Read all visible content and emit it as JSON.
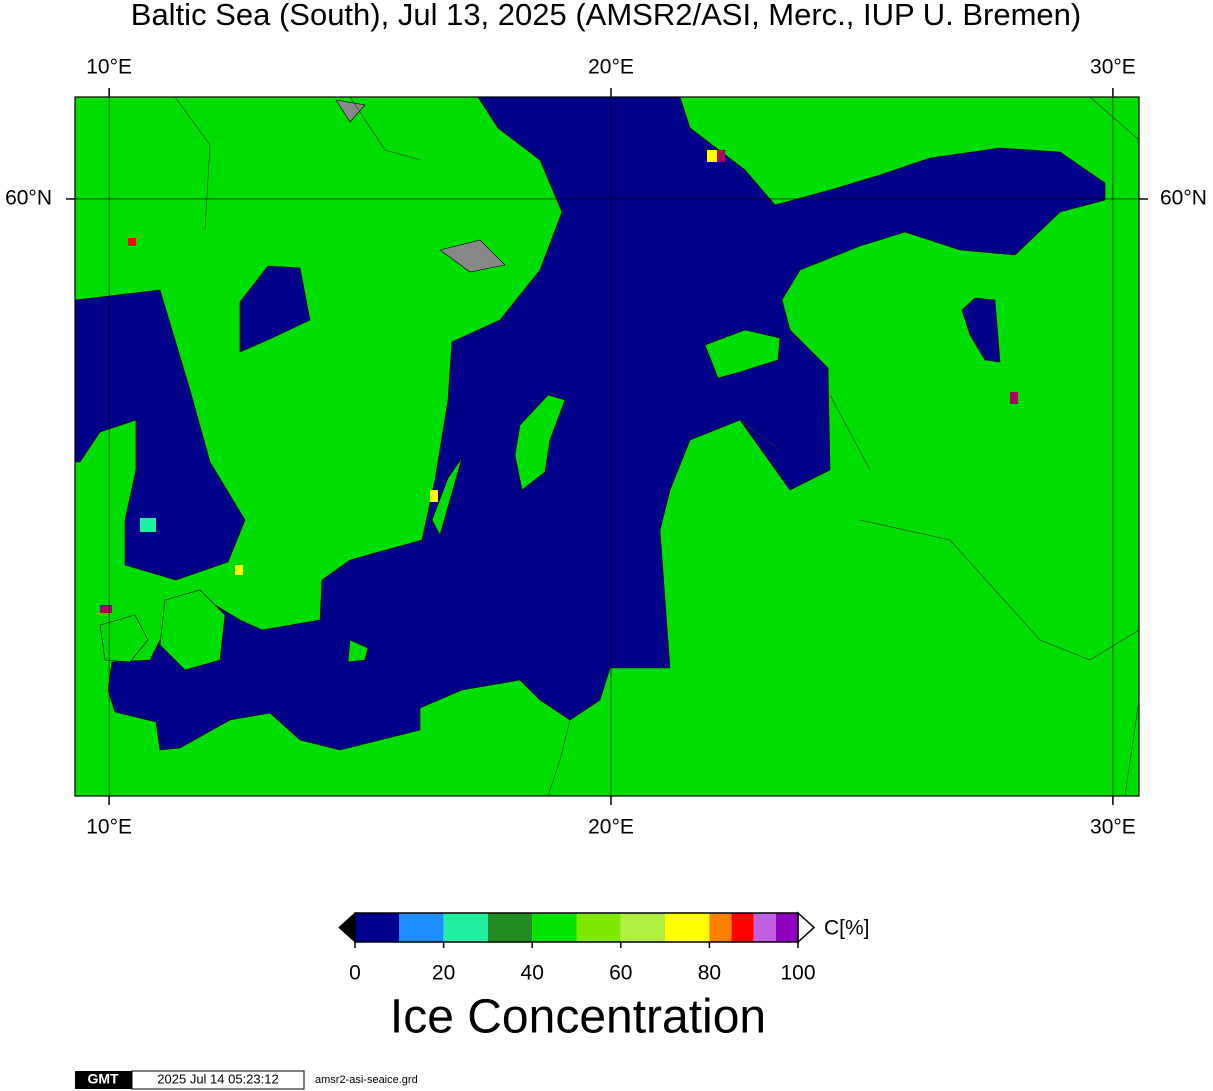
{
  "title": "Baltic Sea (South), Jul 13, 2025 (AMSR2/ASI, Merc., IUP U. Bremen)",
  "map": {
    "projection": "mercator",
    "lonlim": [
      9.32,
      30.52
    ],
    "latlim": [
      53.5,
      61.0
    ],
    "lon_ticks": [
      {
        "value": 10,
        "label": "10°E"
      },
      {
        "value": 20,
        "label": "20°E"
      },
      {
        "value": 30,
        "label": "30°E"
      }
    ],
    "lat_ticks": [
      {
        "value": 60,
        "label": "60°N"
      }
    ]
  },
  "colorbar": {
    "unit": "C[%]",
    "lim": [
      0,
      100
    ],
    "ticks": [
      0,
      20,
      40,
      60,
      80,
      100
    ],
    "bounds": [
      0,
      10,
      20,
      30,
      40,
      50,
      60,
      70,
      80,
      85,
      90,
      95,
      100
    ],
    "colors": [
      "#000090",
      "#1e8fff",
      "#20f0a0",
      "#228b22",
      "#00e400",
      "#80e800",
      "#b0f040",
      "#ffff00",
      "#ff8000",
      "#ff0000",
      "#c060e0",
      "#9000c0"
    ],
    "label": "Ice Concentration"
  },
  "footer": {
    "logo": "GMT",
    "timestamp": "2025 Jul 14 05:23:12",
    "file": "amsr2-asi-seaice.grd"
  }
}
